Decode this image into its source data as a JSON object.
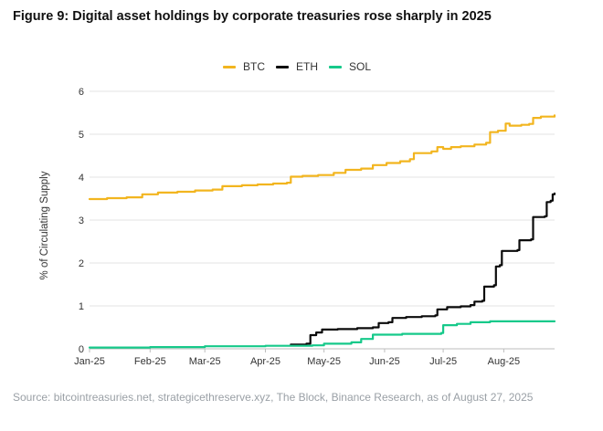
{
  "figure_title": "Figure 9: Digital asset holdings by corporate treasuries rose sharply in 2025",
  "source_note": "Source: bitcointreasuries.net, strategicethreserve.xyz, The Block, Binance Research, as of August 27, 2025",
  "colors": {
    "BTC": "#f2b51f",
    "ETH": "#0b0b0b",
    "SOL": "#16c98a",
    "grid": "#e3e3e3",
    "axis": "#bdbdbd"
  },
  "chart_data": {
    "type": "line",
    "title": "Figure 9: Digital asset holdings by corporate treasuries rose sharply in 2025",
    "xlabel": "",
    "ylabel": "% of Circulating Supply",
    "ylim": [
      0,
      6
    ],
    "yticks": [
      "0",
      "1",
      "2",
      "3",
      "4",
      "5",
      "6"
    ],
    "xticks": [
      "Jan-25",
      "Feb-25",
      "Mar-25",
      "Apr-25",
      "May-25",
      "Jun-25",
      "Jul-25",
      "Aug-25"
    ],
    "xrange": [
      "2025-01-01",
      "2025-08-27"
    ],
    "grid": true,
    "legend_position": "top-center",
    "series": [
      {
        "name": "BTC",
        "color": "#f2b51f",
        "points": [
          [
            "2025-01-01",
            3.49
          ],
          [
            "2025-01-10",
            3.51
          ],
          [
            "2025-01-20",
            3.53
          ],
          [
            "2025-01-28",
            3.6
          ],
          [
            "2025-02-05",
            3.64
          ],
          [
            "2025-02-15",
            3.66
          ],
          [
            "2025-02-24",
            3.69
          ],
          [
            "2025-03-05",
            3.71
          ],
          [
            "2025-03-10",
            3.79
          ],
          [
            "2025-03-20",
            3.81
          ],
          [
            "2025-03-28",
            3.83
          ],
          [
            "2025-04-05",
            3.85
          ],
          [
            "2025-04-12",
            3.87
          ],
          [
            "2025-04-14",
            4.01
          ],
          [
            "2025-04-20",
            4.03
          ],
          [
            "2025-04-28",
            4.05
          ],
          [
            "2025-05-06",
            4.1
          ],
          [
            "2025-05-12",
            4.17
          ],
          [
            "2025-05-20",
            4.2
          ],
          [
            "2025-05-26",
            4.28
          ],
          [
            "2025-06-02",
            4.33
          ],
          [
            "2025-06-09",
            4.37
          ],
          [
            "2025-06-14",
            4.42
          ],
          [
            "2025-06-16",
            4.56
          ],
          [
            "2025-06-25",
            4.6
          ],
          [
            "2025-06-28",
            4.7
          ],
          [
            "2025-07-01",
            4.66
          ],
          [
            "2025-07-05",
            4.7
          ],
          [
            "2025-07-10",
            4.72
          ],
          [
            "2025-07-17",
            4.76
          ],
          [
            "2025-07-23",
            4.8
          ],
          [
            "2025-07-25",
            5.05
          ],
          [
            "2025-07-29",
            5.08
          ],
          [
            "2025-08-02",
            5.25
          ],
          [
            "2025-08-04",
            5.2
          ],
          [
            "2025-08-10",
            5.22
          ],
          [
            "2025-08-14",
            5.24
          ],
          [
            "2025-08-16",
            5.38
          ],
          [
            "2025-08-20",
            5.41
          ],
          [
            "2025-08-27",
            5.44
          ]
        ]
      },
      {
        "name": "ETH",
        "color": "#0b0b0b",
        "points": [
          [
            "2025-04-14",
            0.1
          ],
          [
            "2025-04-22",
            0.12
          ],
          [
            "2025-04-24",
            0.32
          ],
          [
            "2025-04-27",
            0.38
          ],
          [
            "2025-04-30",
            0.45
          ],
          [
            "2025-05-08",
            0.46
          ],
          [
            "2025-05-18",
            0.48
          ],
          [
            "2025-05-26",
            0.5
          ],
          [
            "2025-05-29",
            0.6
          ],
          [
            "2025-06-03",
            0.62
          ],
          [
            "2025-06-05",
            0.72
          ],
          [
            "2025-06-12",
            0.74
          ],
          [
            "2025-06-20",
            0.76
          ],
          [
            "2025-06-27",
            0.78
          ],
          [
            "2025-06-28",
            0.92
          ],
          [
            "2025-07-03",
            0.97
          ],
          [
            "2025-07-10",
            0.99
          ],
          [
            "2025-07-15",
            1.02
          ],
          [
            "2025-07-17",
            1.1
          ],
          [
            "2025-07-21",
            1.12
          ],
          [
            "2025-07-22",
            1.45
          ],
          [
            "2025-07-27",
            1.48
          ],
          [
            "2025-07-28",
            1.92
          ],
          [
            "2025-07-30",
            1.95
          ],
          [
            "2025-07-31",
            2.28
          ],
          [
            "2025-08-08",
            2.3
          ],
          [
            "2025-08-09",
            2.53
          ],
          [
            "2025-08-15",
            2.55
          ],
          [
            "2025-08-16",
            3.07
          ],
          [
            "2025-08-22",
            3.09
          ],
          [
            "2025-08-23",
            3.42
          ],
          [
            "2025-08-25",
            3.45
          ],
          [
            "2025-08-26",
            3.6
          ],
          [
            "2025-08-27",
            3.62
          ]
        ]
      },
      {
        "name": "SOL",
        "color": "#16c98a",
        "points": [
          [
            "2025-01-01",
            0.03
          ],
          [
            "2025-02-01",
            0.04
          ],
          [
            "2025-03-01",
            0.06
          ],
          [
            "2025-04-01",
            0.07
          ],
          [
            "2025-04-25",
            0.08
          ],
          [
            "2025-05-01",
            0.12
          ],
          [
            "2025-05-15",
            0.15
          ],
          [
            "2025-05-20",
            0.23
          ],
          [
            "2025-05-26",
            0.33
          ],
          [
            "2025-06-10",
            0.35
          ],
          [
            "2025-06-30",
            0.37
          ],
          [
            "2025-07-01",
            0.55
          ],
          [
            "2025-07-08",
            0.58
          ],
          [
            "2025-07-15",
            0.62
          ],
          [
            "2025-07-25",
            0.64
          ],
          [
            "2025-08-27",
            0.64
          ]
        ]
      }
    ]
  }
}
